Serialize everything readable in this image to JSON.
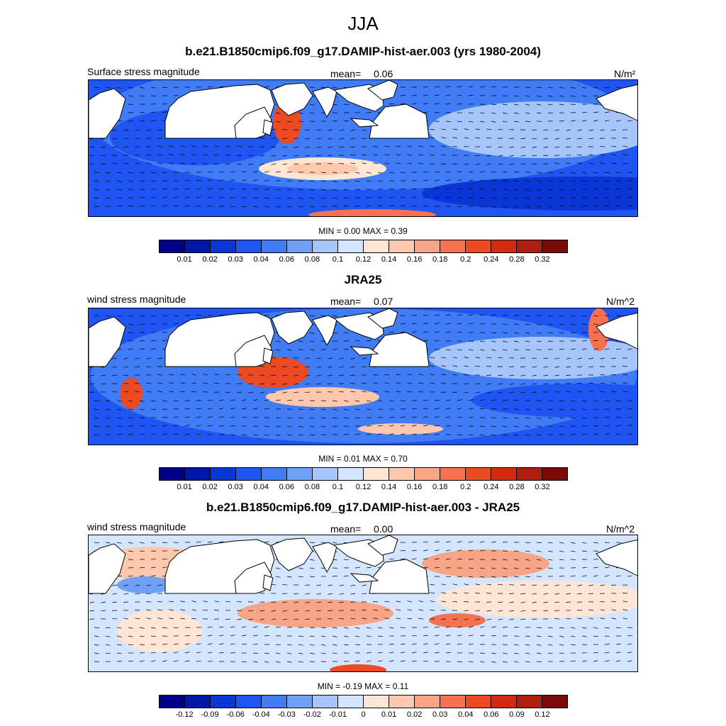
{
  "figure": {
    "title": "JJA"
  },
  "panels": [
    {
      "title": "b.e21.B1850cmip6.f09_g17.DAMIP-hist-aer.003 (yrs 1980-2004)",
      "left_label": "Surface stress magnitude",
      "mean_label": "mean=",
      "mean_value": "0.06",
      "units": "N/m²",
      "minmax": "MIN =   0.00 MAX =   0.39",
      "colorbar": {
        "ticks": [
          "0.01",
          "0.02",
          "0.03",
          "0.04",
          "0.06",
          "0.08",
          "0.1",
          "0.12",
          "0.14",
          "0.16",
          "0.18",
          "0.2",
          "0.24",
          "0.28",
          "0.32"
        ],
        "colors": [
          "#00008b",
          "#0018a8",
          "#0a36d6",
          "#1f55f2",
          "#3f7cf5",
          "#6ea0f7",
          "#a6c6fb",
          "#d4e6ff",
          "#ffe6d4",
          "#fdc8ae",
          "#f8a587",
          "#f5714f",
          "#ec4a22",
          "#d42a10",
          "#b01e12",
          "#7d0a0a"
        ]
      },
      "map_style": "model"
    },
    {
      "title": "JRA25",
      "left_label": "wind stress magnitude",
      "mean_label": "mean=",
      "mean_value": "0.07",
      "units": "N/m^2",
      "minmax": "MIN =   0.01 MAX =   0.70",
      "colorbar": {
        "ticks": [
          "0.01",
          "0.02",
          "0.03",
          "0.04",
          "0.06",
          "0.08",
          "0.1",
          "0.12",
          "0.14",
          "0.16",
          "0.18",
          "0.2",
          "0.24",
          "0.28",
          "0.32"
        ],
        "colors": [
          "#00008b",
          "#0018a8",
          "#0a36d6",
          "#1f55f2",
          "#3f7cf5",
          "#6ea0f7",
          "#a6c6fb",
          "#d4e6ff",
          "#ffe6d4",
          "#fdc8ae",
          "#f8a587",
          "#f5714f",
          "#ec4a22",
          "#d42a10",
          "#b01e12",
          "#7d0a0a"
        ]
      },
      "map_style": "obs"
    },
    {
      "title": "b.e21.B1850cmip6.f09_g17.DAMIP-hist-aer.003 - JRA25",
      "left_label": "wind stress magnitude",
      "mean_label": "mean=",
      "mean_value": "0.00",
      "units": "N/m^2",
      "minmax": "MIN =  -0.19 MAX =   0.11",
      "colorbar": {
        "ticks": [
          "-0.12",
          "-0.09",
          "-0.06",
          "-0.04",
          "-0.03",
          "-0.02",
          "-0.01",
          "0",
          "0.01",
          "0.02",
          "0.03",
          "0.04",
          "0.06",
          "0.09",
          "0.12"
        ],
        "colors": [
          "#00008b",
          "#0018a8",
          "#0a36d6",
          "#1f55f2",
          "#3f7cf5",
          "#6ea0f7",
          "#a6c6fb",
          "#d4e6ff",
          "#ffe6d4",
          "#fdc8ae",
          "#f8a587",
          "#f5714f",
          "#ec4a22",
          "#d42a10",
          "#b01e12",
          "#7d0a0a"
        ]
      },
      "map_style": "diff"
    }
  ]
}
